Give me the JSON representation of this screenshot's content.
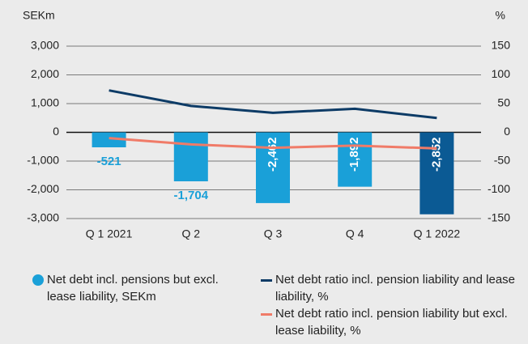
{
  "chart_data": {
    "type": "bar",
    "y_label": "SEKm",
    "y2_label": "%",
    "categories": [
      "Q 1 2021",
      "Q 2",
      "Q 3",
      "Q 4",
      "Q 1 2022"
    ],
    "ylim": [
      -3000,
      3000
    ],
    "yticks": [
      {
        "value": 3000,
        "label": "3,000"
      },
      {
        "value": 2000,
        "label": "2,000"
      },
      {
        "value": 1000,
        "label": "1,000"
      },
      0,
      {
        "value": -1000,
        "label": "-1,000"
      },
      {
        "value": -2000,
        "label": "-2,000"
      },
      {
        "value": -3000,
        "label": "-3,000"
      }
    ],
    "y2lim": [
      -150,
      150
    ],
    "y2ticks": [
      150,
      100,
      50,
      0,
      -50,
      -100,
      -150
    ],
    "series": [
      {
        "name": "Net debt incl. pensions but excl. lease liability, SEKm",
        "type": "bar",
        "color": "#1aa0d8",
        "colors": [
          "#1aa0d8",
          "#1aa0d8",
          "#1aa0d8",
          "#1aa0d8",
          "#0b5a94"
        ],
        "values": [
          -521,
          -1704,
          -2462,
          -1892,
          -2852
        ],
        "value_labels": [
          "-521",
          "-1,704",
          "-2,462",
          "-1,892",
          "-2,852"
        ]
      },
      {
        "name": "Net debt ratio incl. pension liability and lease liability, %",
        "type": "line",
        "axis": "y2",
        "color": "#0d3b66",
        "values": [
          73,
          46,
          34,
          41,
          25
        ]
      },
      {
        "name": "Net debt ratio incl. pension liability but excl. lease liability, %",
        "type": "line",
        "axis": "y2",
        "color": "#f07b68",
        "values": [
          -10,
          -21,
          -27,
          -23,
          -28
        ]
      }
    ]
  }
}
